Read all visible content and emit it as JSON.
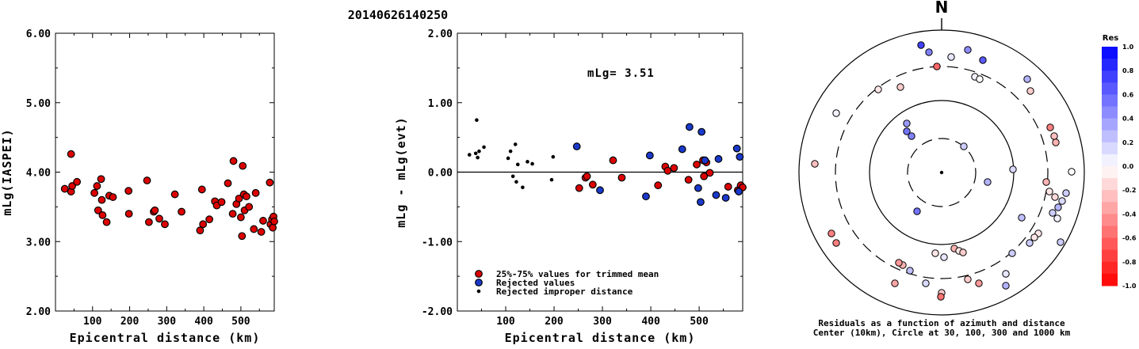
{
  "title": "20140626140250",
  "chart_data": [
    {
      "type": "scatter",
      "ylabel": "mLg(IASPEI)",
      "xlabel": "Epicentral distance (km)",
      "xlim": [
        0,
        590
      ],
      "ylim": [
        2.0,
        6.0
      ],
      "xticks": [
        "100",
        "200",
        "300",
        "400",
        "500"
      ],
      "xtick_values": [
        100,
        200,
        300,
        400,
        500
      ],
      "yticks": [
        "2.00",
        "3.00",
        "4.00",
        "5.00",
        "6.00"
      ],
      "ytick_values": [
        2.0,
        3.0,
        4.0,
        5.0,
        6.0
      ],
      "points": [
        [
          25,
          3.76
        ],
        [
          42,
          4.26
        ],
        [
          42,
          3.72
        ],
        [
          45,
          3.8
        ],
        [
          58,
          3.86
        ],
        [
          105,
          3.7
        ],
        [
          112,
          3.8
        ],
        [
          115,
          3.45
        ],
        [
          123,
          3.9
        ],
        [
          125,
          3.6
        ],
        [
          127,
          3.38
        ],
        [
          138,
          3.28
        ],
        [
          145,
          3.66
        ],
        [
          155,
          3.64
        ],
        [
          197,
          3.73
        ],
        [
          198,
          3.4
        ],
        [
          247,
          3.88
        ],
        [
          252,
          3.28
        ],
        [
          265,
          3.43
        ],
        [
          268,
          3.45
        ],
        [
          280,
          3.33
        ],
        [
          295,
          3.25
        ],
        [
          322,
          3.68
        ],
        [
          340,
          3.43
        ],
        [
          390,
          3.16
        ],
        [
          395,
          3.75
        ],
        [
          398,
          3.25
        ],
        [
          415,
          3.32
        ],
        [
          430,
          3.58
        ],
        [
          435,
          3.52
        ],
        [
          448,
          3.57
        ],
        [
          465,
          3.84
        ],
        [
          478,
          3.4
        ],
        [
          480,
          4.16
        ],
        [
          488,
          3.54
        ],
        [
          495,
          3.62
        ],
        [
          500,
          3.35
        ],
        [
          503,
          3.08
        ],
        [
          505,
          4.09
        ],
        [
          508,
          3.68
        ],
        [
          510,
          3.45
        ],
        [
          515,
          3.65
        ],
        [
          522,
          3.5
        ],
        [
          535,
          3.18
        ],
        [
          540,
          3.7
        ],
        [
          555,
          3.14
        ],
        [
          560,
          3.3
        ],
        [
          578,
          3.85
        ],
        [
          580,
          3.25
        ],
        [
          584,
          3.32
        ],
        [
          586,
          3.2
        ],
        [
          588,
          3.36
        ],
        [
          590,
          3.29
        ]
      ]
    },
    {
      "type": "scatter",
      "ylabel": "mLg - mLg(evt)",
      "xlabel": "Epicentral distance (km)",
      "annotation": "mLg= 3.51",
      "xlim": [
        0,
        590
      ],
      "ylim": [
        -2.0,
        2.0
      ],
      "xticks": [
        "100",
        "200",
        "300",
        "400",
        "500"
      ],
      "xtick_values": [
        100,
        200,
        300,
        400,
        500
      ],
      "yticks": [
        "-2.00",
        "-1.00",
        "0.00",
        "1.00",
        "2.00"
      ],
      "ytick_values": [
        -2.0,
        -1.0,
        0.0,
        1.0,
        2.0
      ],
      "zero_line": 0,
      "legend": [
        {
          "label": "25%-75% values for trimmed mean",
          "color": "#dd0000"
        },
        {
          "label": "Rejected values",
          "color": "#1a3acc"
        },
        {
          "label": "Rejected improper distance",
          "color": "#000000"
        }
      ],
      "series": [
        {
          "name": "25%-75% values for trimmed mean",
          "color": "#dd0000",
          "points": [
            [
              252,
              -0.23
            ],
            [
              265,
              -0.08
            ],
            [
              268,
              -0.06
            ],
            [
              280,
              -0.18
            ],
            [
              322,
              0.17
            ],
            [
              340,
              -0.08
            ],
            [
              415,
              -0.19
            ],
            [
              430,
              0.08
            ],
            [
              435,
              0.02
            ],
            [
              448,
              0.06
            ],
            [
              478,
              -0.11
            ],
            [
              495,
              0.11
            ],
            [
              508,
              0.17
            ],
            [
              510,
              -0.06
            ],
            [
              515,
              0.14
            ],
            [
              522,
              -0.01
            ],
            [
              560,
              -0.21
            ],
            [
              580,
              -0.26
            ],
            [
              586,
              -0.19
            ],
            [
              590,
              -0.22
            ]
          ]
        },
        {
          "name": "Rejected values",
          "color": "#1a3acc",
          "points": [
            [
              247,
              0.37
            ],
            [
              295,
              -0.26
            ],
            [
              390,
              -0.35
            ],
            [
              398,
              0.24
            ],
            [
              465,
              0.33
            ],
            [
              480,
              0.65
            ],
            [
              498,
              -0.23
            ],
            [
              503,
              -0.43
            ],
            [
              505,
              0.58
            ],
            [
              512,
              0.17
            ],
            [
              535,
              -0.33
            ],
            [
              540,
              0.19
            ],
            [
              555,
              -0.37
            ],
            [
              578,
              0.34
            ],
            [
              582,
              -0.28
            ],
            [
              584,
              0.22
            ]
          ]
        },
        {
          "name": "Rejected improper distance",
          "color": "#000000",
          "points": [
            [
              25,
              0.25
            ],
            [
              38,
              0.27
            ],
            [
              40,
              0.75
            ],
            [
              42,
              0.21
            ],
            [
              45,
              0.3
            ],
            [
              55,
              0.36
            ],
            [
              105,
              0.2
            ],
            [
              110,
              0.3
            ],
            [
              115,
              -0.06
            ],
            [
              120,
              0.4
            ],
            [
              122,
              -0.14
            ],
            [
              125,
              0.11
            ],
            [
              135,
              -0.22
            ],
            [
              145,
              0.15
            ],
            [
              155,
              0.12
            ],
            [
              195,
              -0.11
            ],
            [
              198,
              0.22
            ]
          ]
        }
      ]
    },
    {
      "type": "scatter",
      "polar": true,
      "north_label": "N",
      "caption_line1": "Residuals as a function of azimuth and distance",
      "caption_line2": "Center (10km), Circle at 30, 100, 300 and 1000 km",
      "colorbar_title": "Res",
      "colorbar_ticks": [
        "1.0",
        "0.8",
        "0.6",
        "0.4",
        "0.2",
        "0.0",
        "-0.2",
        "-0.4",
        "-0.6",
        "-0.8",
        "-1.0"
      ],
      "colorbar_values": [
        1.0,
        0.8,
        0.6,
        0.4,
        0.2,
        0.0,
        -0.2,
        -0.4,
        -0.6,
        -0.8,
        -1.0
      ],
      "stations_offset_res": [
        [
          -26,
          -161,
          0.75
        ],
        [
          -16,
          -152,
          0.5
        ],
        [
          12,
          -146,
          0.1
        ],
        [
          33,
          -155,
          0.45
        ],
        [
          52,
          -142,
          0.65
        ],
        [
          -6,
          -134,
          -0.6
        ],
        [
          42,
          -121,
          0.05
        ],
        [
          48,
          -118,
          0.0
        ],
        [
          -52,
          -108,
          -0.2
        ],
        [
          -80,
          -105,
          -0.1
        ],
        [
          108,
          -118,
          0.3
        ],
        [
          112,
          -103,
          -0.2
        ],
        [
          -133,
          -75,
          0.05
        ],
        [
          -44,
          -62,
          0.4
        ],
        [
          -44,
          -52,
          0.55
        ],
        [
          -38,
          -46,
          0.5
        ],
        [
          28,
          -33,
          0.2
        ],
        [
          137,
          -57,
          -0.5
        ],
        [
          142,
          -46,
          -0.25
        ],
        [
          144,
          -38,
          -0.3
        ],
        [
          90,
          -4,
          0.15
        ],
        [
          164,
          -1,
          0.0
        ],
        [
          -160,
          -11,
          -0.25
        ],
        [
          58,
          12,
          0.3
        ],
        [
          132,
          12,
          -0.3
        ],
        [
          136,
          24,
          -0.1
        ],
        [
          157,
          26,
          0.2
        ],
        [
          143,
          31,
          -0.15
        ],
        [
          152,
          36,
          0.15
        ],
        [
          147,
          44,
          0.3
        ],
        [
          140,
          51,
          0.2
        ],
        [
          -31,
          49,
          0.55
        ],
        [
          101,
          57,
          0.25
        ],
        [
          146,
          58,
          0.05
        ],
        [
          122,
          77,
          -0.1
        ],
        [
          117,
          82,
          -0.1
        ],
        [
          150,
          88,
          0.2
        ],
        [
          111,
          89,
          0.2
        ],
        [
          -139,
          77,
          -0.5
        ],
        [
          -133,
          89,
          -0.5
        ],
        [
          89,
          102,
          0.2
        ],
        [
          16,
          96,
          -0.3
        ],
        [
          22,
          99,
          -0.1
        ],
        [
          27,
          101,
          -0.2
        ],
        [
          -8,
          102,
          -0.1
        ],
        [
          3,
          107,
          0.1
        ],
        [
          -49,
          117,
          -0.3
        ],
        [
          -54,
          114,
          -0.4
        ],
        [
          -40,
          124,
          0.25
        ],
        [
          81,
          128,
          0.1
        ],
        [
          33,
          135,
          -0.2
        ],
        [
          -20,
          140,
          0.15
        ],
        [
          -59,
          140,
          -0.35
        ],
        [
          47,
          140,
          -0.4
        ],
        [
          0,
          152,
          -0.2
        ],
        [
          81,
          143,
          0.3
        ],
        [
          -1,
          157,
          -0.55
        ]
      ]
    }
  ]
}
